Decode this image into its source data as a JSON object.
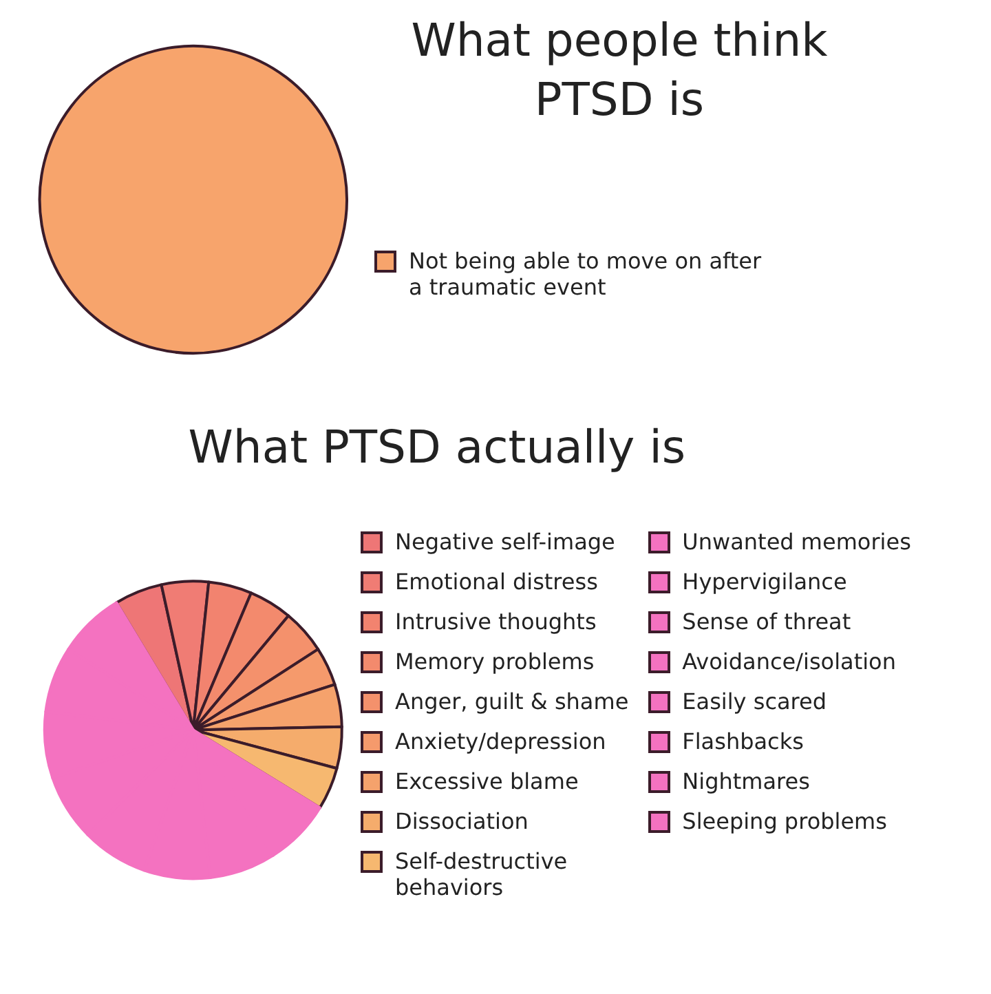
{
  "chart_data": [
    {
      "type": "pie",
      "title": "What people think PTSD is",
      "categories": [
        "Not being able to move on after a traumatic event"
      ],
      "values": [
        100
      ],
      "colors": [
        "#f7a46c"
      ],
      "legend": "right"
    },
    {
      "type": "pie",
      "title": "What PTSD actually is",
      "categories": [
        "Negative self-image",
        "Emotional distress",
        "Intrusive thoughts",
        "Memory problems",
        "Anger, guilt & shame",
        "Anxiety/depression",
        "Excessive blame",
        "Dissociation",
        "Self-destructive behaviors",
        "Unwanted memories",
        "Hypervigilance",
        "Sense of threat",
        "Avoidance/isolation",
        "Easily scared",
        "Flashbacks",
        "Nightmares",
        "Sleeping problems"
      ],
      "values": [
        5.2,
        5.1,
        4.7,
        4.7,
        4.8,
        4.2,
        4.6,
        4.5,
        4.6,
        7.2,
        7.2,
        7.2,
        7.2,
        7.2,
        7.2,
        7.2,
        7.2
      ],
      "colors": [
        "#ee7676",
        "#f07c74",
        "#f2836f",
        "#f38a6d",
        "#f4916c",
        "#f59a6c",
        "#f5a26c",
        "#f5ac6c",
        "#f6b870",
        "#f472c0",
        "#f472c0",
        "#f472c0",
        "#f472c0",
        "#f472c0",
        "#f472c0",
        "#f472c0",
        "#f472c0"
      ],
      "legend": "right"
    }
  ]
}
